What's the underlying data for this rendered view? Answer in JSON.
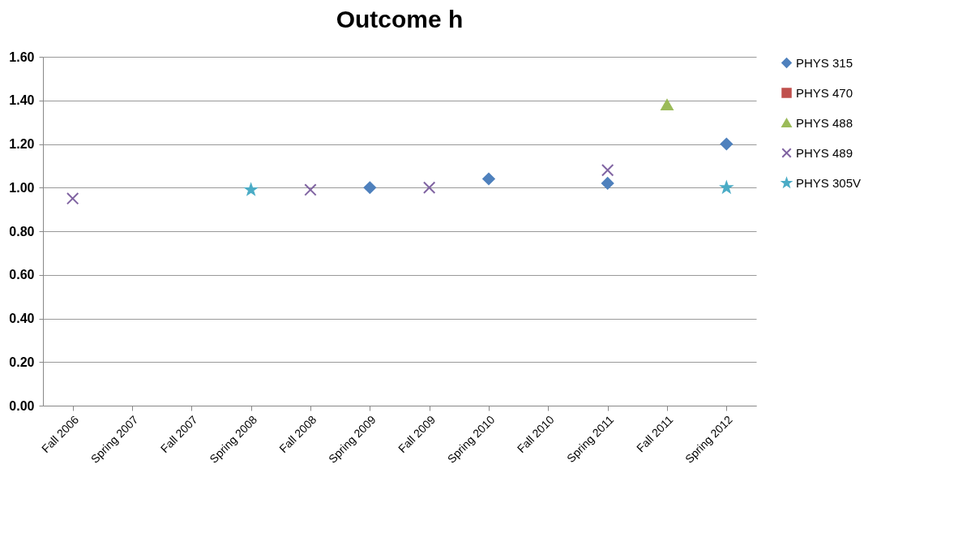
{
  "chart_data": {
    "type": "scatter",
    "title": "Outcome h",
    "categories": [
      "Fall 2006",
      "Spring 2007",
      "Fall 2007",
      "Spring 2008",
      "Fall 2008",
      "Spring 2009",
      "Fall 2009",
      "Spring 2010",
      "Fall 2010",
      "Spring 2011",
      "Fall 2011",
      "Spring 2012"
    ],
    "series": [
      {
        "name": "PHYS 315",
        "color": "#4f81bd",
        "marker": "diamond",
        "values": [
          null,
          null,
          null,
          null,
          null,
          1.0,
          null,
          1.04,
          null,
          1.02,
          null,
          1.2
        ]
      },
      {
        "name": "PHYS 470",
        "color": "#c0504d",
        "marker": "square",
        "values": [
          null,
          null,
          null,
          null,
          null,
          null,
          null,
          null,
          null,
          null,
          null,
          null
        ]
      },
      {
        "name": "PHYS 488",
        "color": "#9bbb59",
        "marker": "triangle",
        "values": [
          null,
          null,
          null,
          null,
          null,
          null,
          null,
          null,
          null,
          null,
          1.38,
          null
        ]
      },
      {
        "name": "PHYS 489",
        "color": "#8064a2",
        "marker": "cross",
        "values": [
          0.95,
          null,
          null,
          null,
          0.99,
          null,
          1.0,
          null,
          null,
          1.08,
          null,
          null
        ]
      },
      {
        "name": "PHYS 305V",
        "color": "#4bacc6",
        "marker": "star",
        "values": [
          null,
          null,
          null,
          0.99,
          null,
          null,
          null,
          null,
          null,
          null,
          null,
          1.0
        ]
      }
    ],
    "ylim": [
      0,
      1.6
    ],
    "yticks": [
      {
        "value": 0,
        "label": "0.00"
      },
      {
        "value": 0.2,
        "label": "0.20"
      },
      {
        "value": 0.4,
        "label": "0.40"
      },
      {
        "value": 0.6,
        "label": "0.60"
      },
      {
        "value": 0.8,
        "label": "0.80"
      },
      {
        "value": 1.0,
        "label": "1.00"
      },
      {
        "value": 1.2,
        "label": "1.20"
      },
      {
        "value": 1.4,
        "label": "1.40"
      },
      {
        "value": 1.6,
        "label": "1.60"
      }
    ],
    "grid": "y",
    "legend": "right"
  }
}
